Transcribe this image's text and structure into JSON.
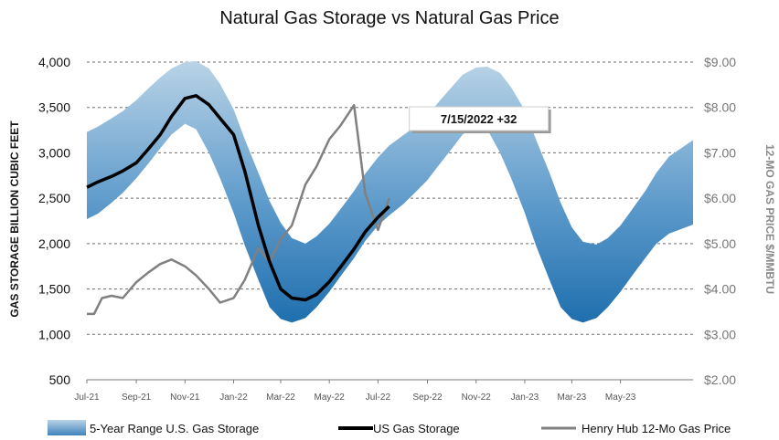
{
  "chart_data": {
    "type": "area",
    "title": "Natural Gas Storage vs Natural Gas Price",
    "ylabel": "GAS STORAGE BILLION CUBIC FEET",
    "y2label": "12-MO GAS PRICE $/MMBTU",
    "ylim": [
      500,
      4000
    ],
    "y2lim": [
      2.0,
      9.0
    ],
    "xlim": [
      "2021-07-01",
      "2023-07-31"
    ],
    "y_ticks": [
      "500",
      "1,000",
      "1,500",
      "2,000",
      "2,500",
      "3,000",
      "3,500",
      "4,000"
    ],
    "y2_ticks": [
      "$2.00",
      "$3.00",
      "$4.00",
      "$5.00",
      "$6.00",
      "$7.00",
      "$8.00",
      "$9.00"
    ],
    "x_ticks": [
      {
        "date": "2021-07-01",
        "label": "Jul-21"
      },
      {
        "date": "2021-09-01",
        "label": "Sep-21"
      },
      {
        "date": "2021-11-01",
        "label": "Nov-21"
      },
      {
        "date": "2022-01-01",
        "label": "Jan-22"
      },
      {
        "date": "2022-03-01",
        "label": "Mar-22"
      },
      {
        "date": "2022-05-01",
        "label": "May-22"
      },
      {
        "date": "2022-07-01",
        "label": "Jul-22"
      },
      {
        "date": "2022-09-01",
        "label": "Sep-22"
      },
      {
        "date": "2022-11-01",
        "label": "Nov-22"
      },
      {
        "date": "2023-01-01",
        "label": "Jan-23"
      },
      {
        "date": "2023-03-01",
        "label": "Mar-23"
      },
      {
        "date": "2023-05-01",
        "label": "May-23"
      }
    ],
    "grid": true,
    "legend_position": "bottom",
    "band": {
      "name": "5-Year Range U.S. Gas Storage",
      "color_top": "#b9d3e6",
      "color_bottom": "#1f6fae",
      "points": [
        {
          "x": "2021-07-01",
          "low": 2270,
          "high": 3230
        },
        {
          "x": "2021-07-15",
          "low": 2330,
          "high": 3290
        },
        {
          "x": "2021-08-01",
          "low": 2450,
          "high": 3380
        },
        {
          "x": "2021-08-15",
          "low": 2560,
          "high": 3460
        },
        {
          "x": "2021-09-01",
          "low": 2720,
          "high": 3580
        },
        {
          "x": "2021-09-15",
          "low": 2870,
          "high": 3700
        },
        {
          "x": "2021-10-01",
          "low": 3050,
          "high": 3830
        },
        {
          "x": "2021-10-15",
          "low": 3200,
          "high": 3930
        },
        {
          "x": "2021-11-01",
          "low": 3320,
          "high": 4000
        },
        {
          "x": "2021-11-15",
          "low": 3260,
          "high": 4010
        },
        {
          "x": "2021-12-01",
          "low": 3000,
          "high": 3930
        },
        {
          "x": "2021-12-15",
          "low": 2720,
          "high": 3760
        },
        {
          "x": "2022-01-01",
          "low": 2340,
          "high": 3480
        },
        {
          "x": "2022-01-15",
          "low": 1980,
          "high": 3150
        },
        {
          "x": "2022-02-01",
          "low": 1600,
          "high": 2780
        },
        {
          "x": "2022-02-15",
          "low": 1300,
          "high": 2470
        },
        {
          "x": "2022-03-01",
          "low": 1170,
          "high": 2230
        },
        {
          "x": "2022-03-15",
          "low": 1130,
          "high": 2060
        },
        {
          "x": "2022-04-01",
          "low": 1180,
          "high": 2000
        },
        {
          "x": "2022-04-15",
          "low": 1300,
          "high": 2080
        },
        {
          "x": "2022-05-01",
          "low": 1470,
          "high": 2220
        },
        {
          "x": "2022-05-15",
          "low": 1640,
          "high": 2380
        },
        {
          "x": "2022-06-01",
          "low": 1840,
          "high": 2580
        },
        {
          "x": "2022-06-15",
          "low": 2030,
          "high": 2770
        },
        {
          "x": "2022-07-01",
          "low": 2200,
          "high": 2950
        },
        {
          "x": "2022-07-15",
          "low": 2310,
          "high": 3080
        },
        {
          "x": "2022-08-01",
          "low": 2430,
          "high": 3190
        },
        {
          "x": "2022-08-15",
          "low": 2550,
          "high": 3280
        },
        {
          "x": "2022-09-01",
          "low": 2700,
          "high": 3410
        },
        {
          "x": "2022-09-15",
          "low": 2860,
          "high": 3560
        },
        {
          "x": "2022-10-01",
          "low": 3040,
          "high": 3720
        },
        {
          "x": "2022-10-15",
          "low": 3200,
          "high": 3860
        },
        {
          "x": "2022-11-01",
          "low": 3310,
          "high": 3940
        },
        {
          "x": "2022-11-15",
          "low": 3260,
          "high": 3950
        },
        {
          "x": "2022-12-01",
          "low": 3000,
          "high": 3880
        },
        {
          "x": "2022-12-15",
          "low": 2720,
          "high": 3720
        },
        {
          "x": "2023-01-01",
          "low": 2340,
          "high": 3470
        },
        {
          "x": "2023-01-15",
          "low": 1980,
          "high": 3150
        },
        {
          "x": "2023-02-01",
          "low": 1600,
          "high": 2780
        },
        {
          "x": "2023-02-15",
          "low": 1300,
          "high": 2450
        },
        {
          "x": "2023-03-01",
          "low": 1170,
          "high": 2180
        },
        {
          "x": "2023-03-15",
          "low": 1130,
          "high": 2020
        },
        {
          "x": "2023-04-01",
          "low": 1180,
          "high": 1990
        },
        {
          "x": "2023-04-15",
          "low": 1300,
          "high": 2060
        },
        {
          "x": "2023-05-01",
          "low": 1470,
          "high": 2200
        },
        {
          "x": "2023-05-15",
          "low": 1640,
          "high": 2370
        },
        {
          "x": "2023-06-01",
          "low": 1840,
          "high": 2580
        },
        {
          "x": "2023-06-15",
          "low": 2000,
          "high": 2780
        },
        {
          "x": "2023-07-01",
          "low": 2110,
          "high": 2960
        },
        {
          "x": "2023-07-31",
          "low": 2210,
          "high": 3140
        }
      ]
    },
    "series": [
      {
        "name": "US Gas Storage",
        "axis": "left",
        "color": "#000000",
        "points": [
          {
            "x": "2021-07-01",
            "y": 2620
          },
          {
            "x": "2021-07-15",
            "y": 2680
          },
          {
            "x": "2021-08-01",
            "y": 2740
          },
          {
            "x": "2021-08-15",
            "y": 2800
          },
          {
            "x": "2021-09-01",
            "y": 2890
          },
          {
            "x": "2021-09-15",
            "y": 3030
          },
          {
            "x": "2021-10-01",
            "y": 3200
          },
          {
            "x": "2021-10-15",
            "y": 3400
          },
          {
            "x": "2021-11-01",
            "y": 3600
          },
          {
            "x": "2021-11-15",
            "y": 3630
          },
          {
            "x": "2021-12-01",
            "y": 3530
          },
          {
            "x": "2021-12-15",
            "y": 3380
          },
          {
            "x": "2022-01-01",
            "y": 3200
          },
          {
            "x": "2022-01-15",
            "y": 2800
          },
          {
            "x": "2022-02-01",
            "y": 2200
          },
          {
            "x": "2022-02-15",
            "y": 1800
          },
          {
            "x": "2022-03-01",
            "y": 1500
          },
          {
            "x": "2022-03-15",
            "y": 1400
          },
          {
            "x": "2022-04-01",
            "y": 1380
          },
          {
            "x": "2022-04-15",
            "y": 1440
          },
          {
            "x": "2022-05-01",
            "y": 1580
          },
          {
            "x": "2022-05-15",
            "y": 1740
          },
          {
            "x": "2022-06-01",
            "y": 1940
          },
          {
            "x": "2022-06-15",
            "y": 2130
          },
          {
            "x": "2022-07-01",
            "y": 2290
          },
          {
            "x": "2022-07-15",
            "y": 2410
          }
        ]
      },
      {
        "name": "Henry Hub 12-Mo Gas Price",
        "axis": "right",
        "color": "#808080",
        "points": [
          {
            "x": "2021-07-01",
            "y": 3.45
          },
          {
            "x": "2021-07-10",
            "y": 3.45
          },
          {
            "x": "2021-07-20",
            "y": 3.8
          },
          {
            "x": "2021-08-01",
            "y": 3.85
          },
          {
            "x": "2021-08-15",
            "y": 3.8
          },
          {
            "x": "2021-09-01",
            "y": 4.15
          },
          {
            "x": "2021-09-15",
            "y": 4.35
          },
          {
            "x": "2021-10-01",
            "y": 4.55
          },
          {
            "x": "2021-10-15",
            "y": 4.65
          },
          {
            "x": "2021-11-01",
            "y": 4.5
          },
          {
            "x": "2021-11-15",
            "y": 4.3
          },
          {
            "x": "2021-12-01",
            "y": 4.0
          },
          {
            "x": "2021-12-15",
            "y": 3.7
          },
          {
            "x": "2022-01-01",
            "y": 3.8
          },
          {
            "x": "2022-01-15",
            "y": 4.2
          },
          {
            "x": "2022-02-01",
            "y": 4.9
          },
          {
            "x": "2022-02-15",
            "y": 4.6
          },
          {
            "x": "2022-03-01",
            "y": 5.1
          },
          {
            "x": "2022-03-15",
            "y": 5.4
          },
          {
            "x": "2022-04-01",
            "y": 6.3
          },
          {
            "x": "2022-04-15",
            "y": 6.7
          },
          {
            "x": "2022-05-01",
            "y": 7.3
          },
          {
            "x": "2022-05-15",
            "y": 7.6
          },
          {
            "x": "2022-06-01",
            "y": 8.05
          },
          {
            "x": "2022-06-15",
            "y": 6.1
          },
          {
            "x": "2022-07-01",
            "y": 5.3
          },
          {
            "x": "2022-07-15",
            "y": 6.0
          }
        ]
      }
    ],
    "annotation": {
      "text": "7/15/2022  +32",
      "x": "2022-07-15"
    }
  }
}
